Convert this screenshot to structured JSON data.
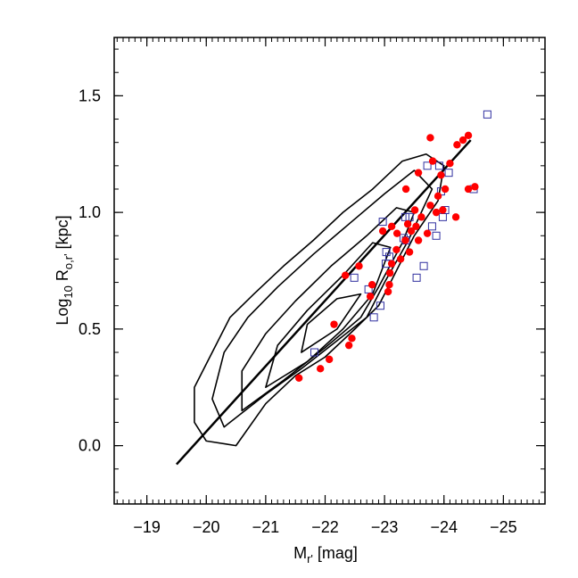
{
  "chart_data": {
    "type": "scatter",
    "xlabel": [
      {
        "text": "M"
      },
      {
        "text": "r'",
        "sub": true
      },
      {
        "text": " [mag]"
      }
    ],
    "ylabel": [
      {
        "text": "Log"
      },
      {
        "text": "10",
        "sub": true
      },
      {
        "text": " R"
      },
      {
        "text": "o,r'",
        "sub": true
      },
      {
        "text": " [kpc]"
      }
    ],
    "xlim": [
      -18.45,
      -25.7
    ],
    "ylim": [
      -0.25,
      1.75
    ],
    "xticks": [
      {
        "value": -19,
        "label": "−19"
      },
      {
        "value": -20,
        "label": "−20"
      },
      {
        "value": -21,
        "label": "−21"
      },
      {
        "value": -22,
        "label": "−22"
      },
      {
        "value": -23,
        "label": "−23"
      },
      {
        "value": -24,
        "label": "−24"
      },
      {
        "value": -25,
        "label": "−25"
      }
    ],
    "yticks": [
      {
        "value": 0,
        "label": "0.0"
      },
      0.5,
      {
        "value": 1,
        "label": "1.0"
      },
      1.5
    ],
    "x_minor_per_major": 10,
    "y_minor_per_major": 5,
    "contour_color": "#000000",
    "contours": [
      {
        "x": [
          -20.0,
          -20.5,
          -21.0,
          -21.5,
          -22.0,
          -22.5,
          -22.9,
          -23.2,
          -23.5,
          -23.9,
          -24.0,
          -23.7,
          -23.3,
          -22.8,
          -22.3,
          -21.8,
          -21.3,
          -20.8,
          -20.4,
          -20.1,
          -19.8,
          -19.8
        ],
        "y": [
          0.02,
          0.0,
          0.18,
          0.3,
          0.38,
          0.5,
          0.6,
          0.75,
          0.9,
          1.05,
          1.2,
          1.25,
          1.22,
          1.1,
          1.0,
          0.88,
          0.77,
          0.65,
          0.55,
          0.4,
          0.25,
          0.1
        ]
      },
      {
        "x": [
          -20.3,
          -21.0,
          -21.6,
          -22.2,
          -22.7,
          -23.0,
          -23.4,
          -23.8,
          -23.5,
          -23.0,
          -22.4,
          -21.8,
          -21.2,
          -20.7,
          -20.3,
          -20.1
        ],
        "y": [
          0.08,
          0.22,
          0.33,
          0.45,
          0.55,
          0.7,
          0.88,
          1.1,
          1.18,
          1.08,
          0.95,
          0.82,
          0.68,
          0.55,
          0.4,
          0.2
        ]
      },
      {
        "x": [
          -20.6,
          -21.3,
          -22.0,
          -22.6,
          -22.9,
          -23.3,
          -23.5,
          -23.2,
          -22.7,
          -22.1,
          -21.5,
          -21.0,
          -20.6
        ],
        "y": [
          0.15,
          0.28,
          0.42,
          0.55,
          0.68,
          0.87,
          1.0,
          1.02,
          0.9,
          0.77,
          0.62,
          0.48,
          0.32
        ]
      },
      {
        "x": [
          -21.0,
          -21.7,
          -22.3,
          -22.8,
          -23.1,
          -22.8,
          -22.3,
          -21.7,
          -21.2
        ],
        "y": [
          0.25,
          0.36,
          0.5,
          0.65,
          0.85,
          0.87,
          0.73,
          0.58,
          0.43
        ]
      },
      {
        "x": [
          -21.6,
          -22.2,
          -22.6,
          -22.2,
          -21.7
        ],
        "y": [
          0.4,
          0.5,
          0.65,
          0.63,
          0.52
        ]
      }
    ],
    "fit": {
      "color": "#000000",
      "x": [
        -19.5,
        -24.45
      ],
      "y": [
        -0.08,
        1.31
      ]
    },
    "series": [
      {
        "marker": "square",
        "color": "#3030a0",
        "x": [
          -24.73,
          -21.82,
          -22.49,
          -22.73,
          -22.93,
          -23.02,
          -23.03,
          -23.32,
          -23.35,
          -23.42,
          -23.54,
          -23.66,
          -23.8,
          -23.98,
          -24.02,
          -23.95,
          -24.08,
          -24.5,
          -23.92,
          -23.72,
          -23.87,
          -23.08,
          -22.82,
          -22.97,
          -23.36
        ],
        "values": [
          1.42,
          0.4,
          0.72,
          0.67,
          0.6,
          0.78,
          0.83,
          0.89,
          0.98,
          0.98,
          0.72,
          0.77,
          0.94,
          0.98,
          1.01,
          1.09,
          1.17,
          1.1,
          1.2,
          1.2,
          0.9,
          0.81,
          0.55,
          0.96,
          0.88
        ]
      },
      {
        "marker": "circle",
        "color": "#ff0000",
        "x": [
          -21.56,
          -21.92,
          -22.07,
          -22.4,
          -22.45,
          -22.15,
          -22.34,
          -22.57,
          -22.76,
          -22.79,
          -23.06,
          -23.08,
          -23.09,
          -23.12,
          -23.2,
          -23.21,
          -23.27,
          -23.35,
          -23.42,
          -23.45,
          -23.53,
          -23.57,
          -23.62,
          -23.39,
          -23.72,
          -23.77,
          -23.87,
          -23.9,
          -23.95,
          -23.98,
          -24.02,
          -24.1,
          -24.2,
          -24.22,
          -24.32,
          -24.41,
          -24.41,
          -24.52,
          -23.36,
          -23.77,
          -23.81,
          -23.57,
          -22.97,
          -23.12,
          -23.51
        ],
        "values": [
          0.29,
          0.33,
          0.37,
          0.43,
          0.46,
          0.52,
          0.73,
          0.77,
          0.64,
          0.69,
          0.66,
          0.69,
          0.74,
          0.78,
          0.84,
          0.91,
          0.8,
          0.88,
          0.83,
          0.92,
          0.94,
          0.88,
          0.98,
          0.95,
          0.91,
          1.03,
          1.0,
          1.07,
          1.16,
          1.01,
          1.1,
          1.21,
          0.98,
          1.29,
          1.31,
          1.33,
          1.1,
          1.11,
          1.1,
          1.32,
          1.22,
          1.17,
          0.92,
          0.94,
          1.01
        ]
      }
    ]
  }
}
